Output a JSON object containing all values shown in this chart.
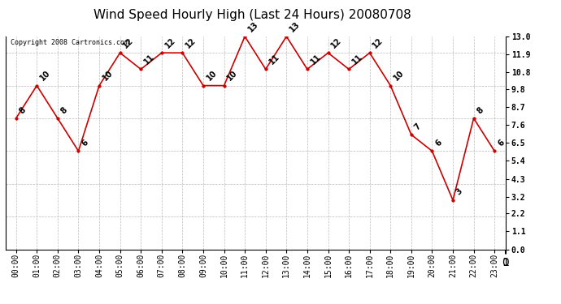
{
  "title": "Wind Speed Hourly High (Last 24 Hours) 20080708",
  "copyright": "Copyright 2008 Cartronics.com",
  "hours": [
    "00:00",
    "01:00",
    "02:00",
    "03:00",
    "04:00",
    "05:00",
    "06:00",
    "07:00",
    "08:00",
    "09:00",
    "10:00",
    "11:00",
    "12:00",
    "13:00",
    "14:00",
    "15:00",
    "16:00",
    "17:00",
    "18:00",
    "19:00",
    "20:00",
    "21:00",
    "22:00",
    "23:00"
  ],
  "values": [
    8,
    10,
    8,
    6,
    10,
    12,
    11,
    12,
    12,
    10,
    10,
    13,
    11,
    13,
    11,
    12,
    11,
    12,
    10,
    7,
    6,
    3,
    8,
    6
  ],
  "line_color": "#cc0000",
  "marker_color": "#cc0000",
  "bg_color": "#ffffff",
  "grid_color": "#aaaaaa",
  "yticks": [
    0.0,
    1.1,
    2.2,
    3.2,
    4.3,
    5.4,
    6.5,
    7.6,
    8.7,
    9.8,
    10.8,
    11.9,
    13.0
  ],
  "ylim": [
    0.0,
    13.0
  ],
  "title_fontsize": 11,
  "label_fontsize": 7,
  "annotation_fontsize": 7,
  "copyright_fontsize": 6
}
